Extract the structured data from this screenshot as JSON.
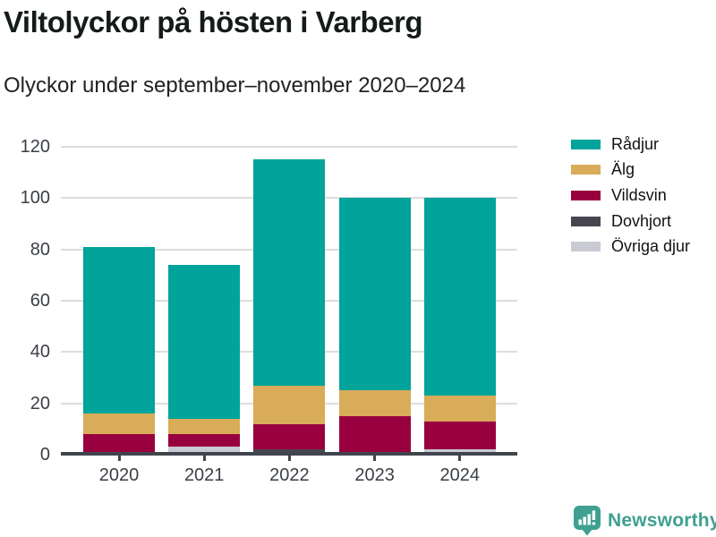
{
  "header": {
    "title": "Viltolyckor på hösten i Varberg",
    "subtitle": "Olyckor under september–november 2020–2024"
  },
  "chart_data": {
    "type": "bar",
    "stacked": true,
    "title": "Viltolyckor på hösten i Varberg",
    "subtitle": "Olyckor under september–november 2020–2024",
    "categories": [
      "2020",
      "2021",
      "2022",
      "2023",
      "2024"
    ],
    "series": [
      {
        "name": "Rådjur",
        "color": "#00a49a",
        "values": [
          65,
          60,
          88,
          75,
          77
        ]
      },
      {
        "name": "Älg",
        "color": "#d9ac5a",
        "values": [
          8,
          6,
          15,
          10,
          10
        ]
      },
      {
        "name": "Vildsvin",
        "color": "#990040",
        "values": [
          8,
          5,
          10,
          15,
          11
        ]
      },
      {
        "name": "Dovhjort",
        "color": "#474650",
        "values": [
          0,
          0,
          2,
          0,
          0
        ]
      },
      {
        "name": "Övriga djur",
        "color": "#c9cad4",
        "values": [
          0,
          3,
          0,
          0,
          2
        ]
      }
    ],
    "totals": [
      81,
      74,
      115,
      100,
      100
    ],
    "xlabel": "",
    "ylabel": "",
    "ylim": [
      0,
      120
    ],
    "yticks": [
      0,
      20,
      40,
      60,
      80,
      100,
      120
    ],
    "grid": true,
    "legend_position": "right-top"
  },
  "legend": {
    "items": [
      "Rådjur",
      "Älg",
      "Vildsvin",
      "Dovhjort",
      "Övriga djur"
    ]
  },
  "footer": {
    "brand": "Newsworthy",
    "brand_color": "#3fa091",
    "logo_icon": "newsworthy-speech-bubble-bar-chart"
  },
  "style_colors": {
    "bar_teal": "#00a49a",
    "bar_gold": "#d9ac5a",
    "bar_crimson": "#990040",
    "bar_darkslate": "#474650",
    "bar_lightgray": "#c9cad4",
    "gridline": "#ddddde",
    "axis": "#40444d",
    "tick_text": "#3a3f45"
  }
}
